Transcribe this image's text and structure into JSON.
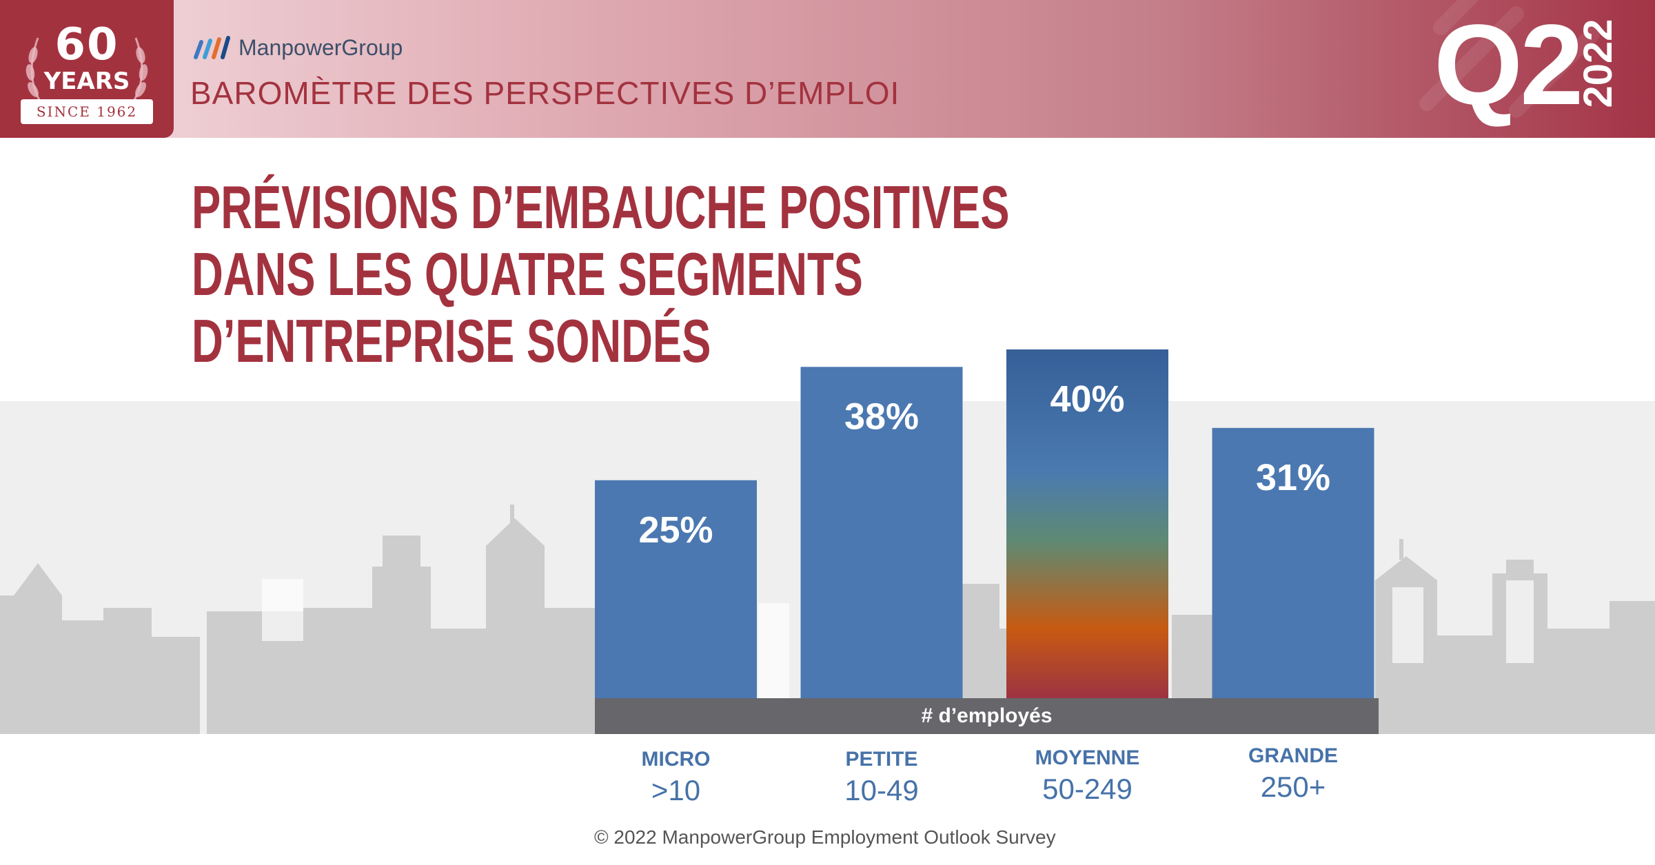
{
  "header": {
    "badge_number": "60",
    "badge_word": "YEARS",
    "badge_since": "SINCE 1962",
    "logo_name": "ManpowerGroup",
    "title": "BAROMÈTRE DES PERSPECTIVES D’EMPLOI",
    "quarter": "Q2",
    "year": "2022"
  },
  "colors": {
    "brand_red": "#a3323f",
    "bar_blue": "#4b78b0",
    "axis_band": "#66666b",
    "category_text": "#4672a8"
  },
  "title_lines": [
    "PRÉVISIONS D’EMBAUCHE POSITIVES",
    "DANS LES QUATRE SEGMENTS",
    "D’ENTREPRISE SONDÉS"
  ],
  "chart_data": {
    "type": "bar",
    "categories": [
      "MICRO",
      "PETITE",
      "MOYENNE",
      "GRANDE"
    ],
    "category_ranges": [
      ">10",
      "10-49",
      "50-249",
      "250+"
    ],
    "values": [
      25,
      38,
      40,
      31
    ],
    "data_labels": [
      "25%",
      "38%",
      "40%",
      "31%"
    ],
    "xlabel": "# d’employés",
    "ylabel": "",
    "ylim": [
      0,
      40
    ],
    "unit": "%",
    "highlighted_category": "MOYENNE",
    "grid": false,
    "legend": "none"
  },
  "footer": "© 2022 ManpowerGroup Employment Outlook Survey"
}
